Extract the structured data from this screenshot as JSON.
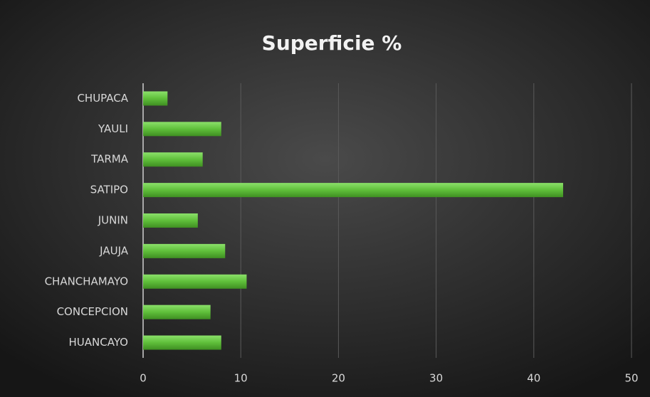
{
  "chart_data": {
    "type": "bar",
    "orientation": "horizontal",
    "title": "Superficie %",
    "categories": [
      "CHUPACA",
      "YAULI",
      "TARMA",
      "SATIPO",
      "JUNIN",
      "JAUJA",
      "CHANCHAMAYO",
      "CONCEPCION",
      "HUANCAYO"
    ],
    "values": [
      2.5,
      8.0,
      6.1,
      43.0,
      5.6,
      8.4,
      10.6,
      6.9,
      8.0
    ],
    "color": "#5fbf3a",
    "xlim": [
      0,
      50
    ],
    "xticks": [
      0,
      10,
      20,
      30,
      40,
      50
    ],
    "grid": true
  }
}
